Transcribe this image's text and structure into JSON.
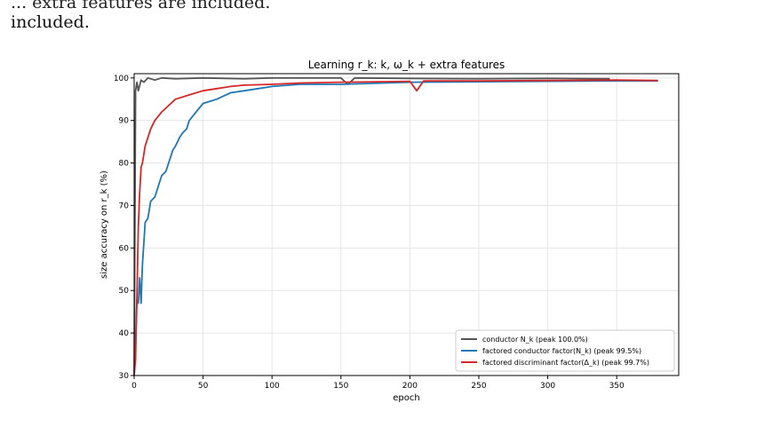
{
  "prose": {
    "line1": "... extra features are included.",
    "line2": "included."
  },
  "chart_data": {
    "type": "line",
    "title": "Learning r_k: k, ω_k + extra features",
    "xlabel": "epoch",
    "ylabel": "size accuracy on r_k  (%)",
    "xlim": [
      0,
      395
    ],
    "ylim": [
      30,
      101
    ],
    "xticks": [
      0,
      50,
      100,
      150,
      200,
      250,
      300,
      350
    ],
    "yticks": [
      30,
      40,
      50,
      60,
      70,
      80,
      90,
      100
    ],
    "grid": true,
    "legend_position": "lower right",
    "series": [
      {
        "name": "conductor N_k  (peak 100.0%)",
        "color": "#555555",
        "x": [
          0,
          1,
          2,
          3,
          5,
          7,
          10,
          15,
          20,
          30,
          50,
          80,
          100,
          150,
          155,
          160,
          200,
          250,
          300,
          345
        ],
        "y": [
          30,
          97,
          99,
          97,
          99.5,
          99,
          100,
          99.5,
          100,
          99.8,
          100,
          99.8,
          100,
          100,
          98.5,
          100,
          99.9,
          99.8,
          99.9,
          99.8
        ]
      },
      {
        "name": "factored conductor factor(N_k)  (peak 99.5%)",
        "color": "#1f77b4",
        "x": [
          0,
          1,
          2,
          3,
          4,
          5,
          6,
          8,
          10,
          12,
          15,
          18,
          20,
          23,
          25,
          28,
          30,
          33,
          35,
          38,
          40,
          45,
          50,
          55,
          60,
          70,
          80,
          90,
          100,
          120,
          150,
          200,
          250,
          300,
          350,
          380
        ],
        "y": [
          30,
          38,
          48,
          47,
          53,
          47,
          56,
          66,
          67,
          71,
          72,
          75,
          77,
          78,
          80,
          83,
          84,
          86,
          87,
          88,
          90,
          92,
          94,
          94.5,
          95,
          96.5,
          97,
          97.5,
          98,
          98.5,
          98.5,
          99,
          99.1,
          99.2,
          99.3,
          99.3
        ]
      },
      {
        "name": "factored discriminant factor(Δ_k)  (peak 99.7%)",
        "color": "#d62728",
        "x": [
          0,
          1,
          2,
          3,
          4,
          5,
          6,
          8,
          10,
          12,
          15,
          20,
          25,
          30,
          35,
          40,
          50,
          60,
          70,
          80,
          100,
          120,
          150,
          200,
          205,
          210,
          250,
          300,
          350,
          380
        ],
        "y": [
          30,
          34,
          48,
          65,
          73,
          79,
          80,
          84,
          86,
          88,
          90,
          92,
          93.5,
          95,
          95.5,
          96,
          97,
          97.5,
          98,
          98.3,
          98.5,
          98.8,
          99,
          99.2,
          97,
          99.3,
          99.3,
          99.4,
          99.5,
          99.4
        ]
      }
    ]
  }
}
